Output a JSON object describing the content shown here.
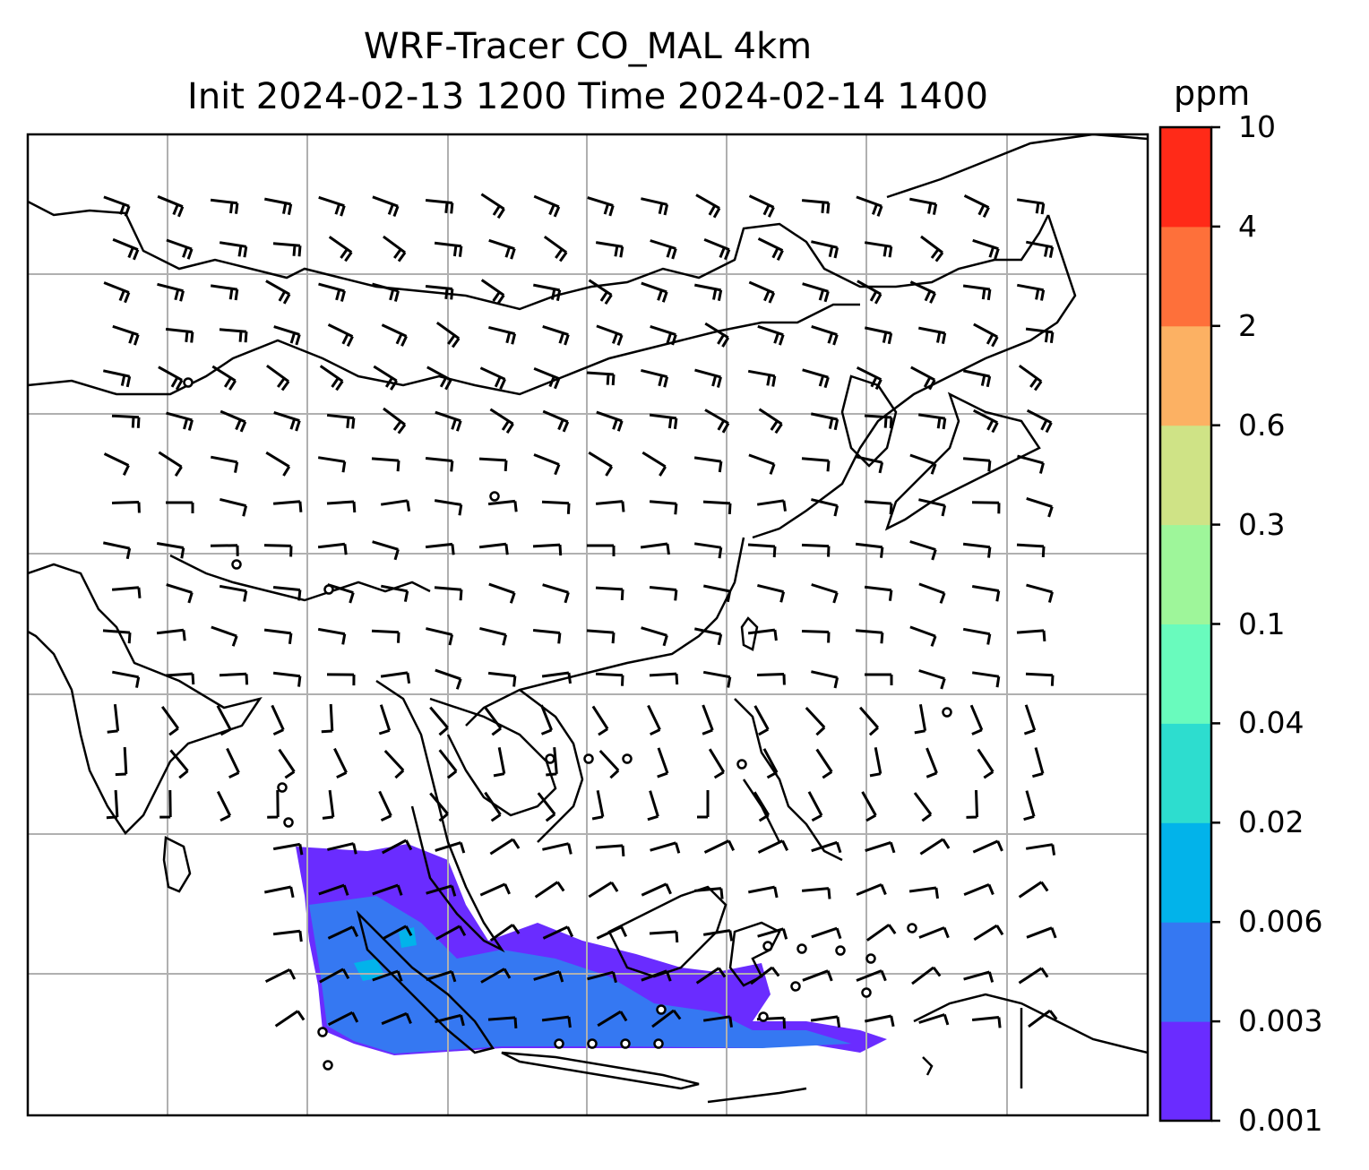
{
  "title": {
    "line1": "WRF-Tracer CO_MAL 4km",
    "line2": "Init 2024-02-13 1200 Time 2024-02-14 1400"
  },
  "colorbar": {
    "unit": "ppm",
    "levels": [
      "0.001",
      "0.003",
      "0.006",
      "0.02",
      "0.04",
      "0.1",
      "0.3",
      "0.6",
      "2",
      "4",
      "10"
    ],
    "colors": [
      "#6a2cff",
      "#3578f2",
      "#02b3ea",
      "#2dddcf",
      "#69fbbd",
      "#9ef69a",
      "#cfe386",
      "#fcb163",
      "#fe703a",
      "#ff2a18"
    ]
  },
  "map": {
    "gridline_color": "#b0b0b0",
    "coastline_color": "#000000",
    "wind_barb_color": "#000000",
    "tracer_plume_colors": [
      "#6a2cff",
      "#3578f2",
      "#02b3ea"
    ]
  }
}
